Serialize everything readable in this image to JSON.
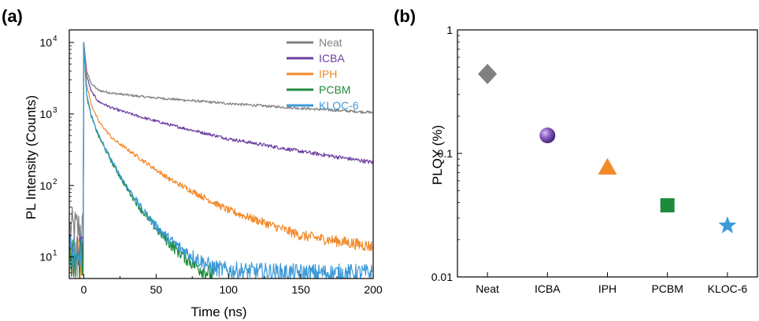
{
  "chart_data": [
    {
      "panel_label": "(a)",
      "type": "line",
      "xlabel": "Time (ns)",
      "ylabel": "PL Intensity (Counts)",
      "xlim": [
        -10,
        200
      ],
      "ylim": [
        5,
        15000
      ],
      "yscale": "log",
      "x_ticks": [
        0,
        50,
        100,
        150,
        200
      ],
      "x_tick_labels": [
        "0",
        "50",
        "100",
        "150",
        "200"
      ],
      "y_ticks": [
        10,
        100,
        1000,
        10000
      ],
      "y_tick_labels": [
        {
          "base": "10",
          "exp": "1"
        },
        {
          "base": "10",
          "exp": "2"
        },
        {
          "base": "10",
          "exp": "3"
        },
        {
          "base": "10",
          "exp": "4"
        }
      ],
      "legend_position": "top-right",
      "peak": {
        "x": 0,
        "y": 10000
      },
      "series": [
        {
          "name": "Neat",
          "color": "#808080",
          "x": [
            0,
            2,
            5,
            10,
            20,
            40,
            60,
            100,
            150,
            200
          ],
          "y": [
            10000,
            4000,
            2700,
            2150,
            1950,
            1750,
            1620,
            1400,
            1200,
            1050
          ]
        },
        {
          "name": "ICBA",
          "color": "#6b3fa0",
          "x": [
            0,
            2,
            5,
            10,
            20,
            40,
            60,
            100,
            150,
            200
          ],
          "y": [
            10000,
            3500,
            2100,
            1500,
            1200,
            900,
            700,
            450,
            300,
            210
          ]
        },
        {
          "name": "IPH",
          "color": "#f28a2a",
          "x": [
            0,
            2,
            5,
            10,
            20,
            40,
            60,
            100,
            150,
            200
          ],
          "y": [
            10000,
            2600,
            1400,
            800,
            450,
            230,
            120,
            45,
            20,
            14
          ]
        },
        {
          "name": "PCBM",
          "color": "#1e8a3c",
          "x": [
            0,
            2,
            5,
            10,
            20,
            30,
            40,
            50,
            60,
            70,
            80,
            90
          ],
          "y": [
            10000,
            1800,
            950,
            500,
            200,
            90,
            45,
            25,
            15,
            10,
            7,
            5.5
          ]
        },
        {
          "name": "KLOC-6",
          "color": "#3d9ad8",
          "x": [
            0,
            2,
            5,
            10,
            20,
            30,
            40,
            50,
            60,
            70,
            80,
            90,
            100,
            150,
            200
          ],
          "y": [
            10000,
            1900,
            1000,
            520,
            210,
            95,
            48,
            27,
            17,
            12,
            9,
            7,
            6.5,
            6,
            6
          ]
        }
      ]
    },
    {
      "panel_label": "(b)",
      "type": "scatter",
      "xlabel": "",
      "ylabel": "PLQY (%)",
      "yscale": "log",
      "ylim": [
        0.01,
        1
      ],
      "y_ticks": [
        0.01,
        0.1,
        1
      ],
      "y_tick_labels": [
        "0.01",
        "0.1",
        "1"
      ],
      "categories": [
        "Neat",
        "ICBA",
        "IPH",
        "PCBM",
        "KLOC-6"
      ],
      "values": [
        0.44,
        0.14,
        0.077,
        0.038,
        0.026
      ],
      "markers": [
        "diamond",
        "sphere",
        "triangle",
        "square",
        "star"
      ],
      "colors": [
        "#808080",
        "#6b3fa0",
        "#f28a2a",
        "#1e8a3c",
        "#3d9ad8"
      ]
    }
  ]
}
